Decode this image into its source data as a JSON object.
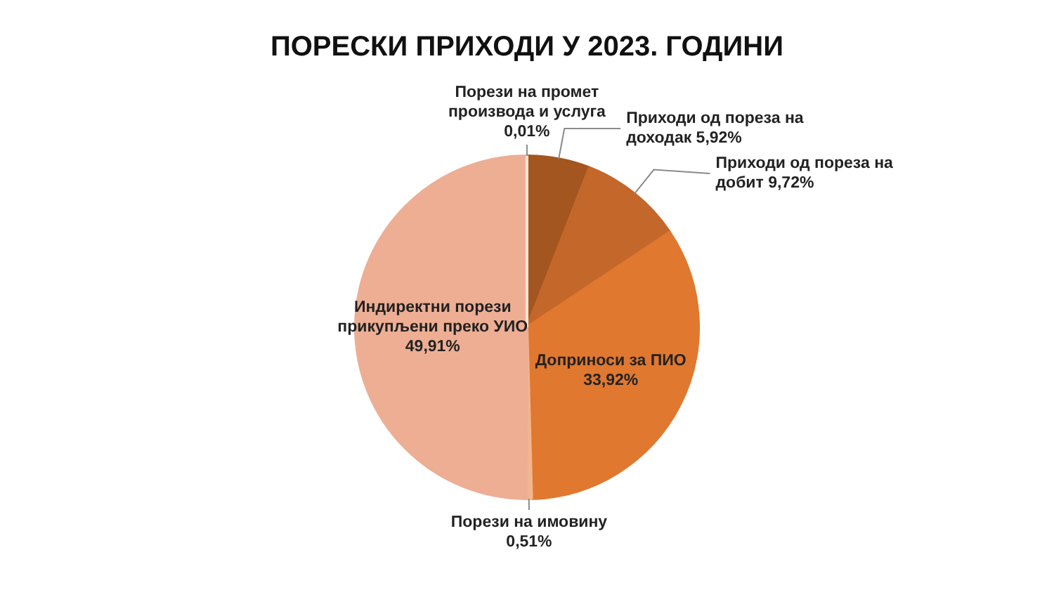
{
  "chart_data": {
    "type": "pie",
    "title": "ПОРЕСКИ ПРИХОДИ У 2023. ГОДИНИ",
    "categories": [
      "Приходи од пореза на доходак",
      "Приходи од пореза на добит",
      "Доприноси за ПИО",
      "Порези на имовину",
      "Индиректни порези прикупљени преко УИО",
      "Порези на промет производа и услуга"
    ],
    "values": [
      5.92,
      9.72,
      33.92,
      0.51,
      49.91,
      0.01
    ],
    "value_labels": [
      "5,92%",
      "9,72%",
      "33,92%",
      "0,51%",
      "49,91%",
      "0,01%"
    ],
    "colors": [
      "#a3561f",
      "#c4672a",
      "#e0782f",
      "#f3b58f",
      "#edae94",
      "#fbe3d4"
    ]
  }
}
